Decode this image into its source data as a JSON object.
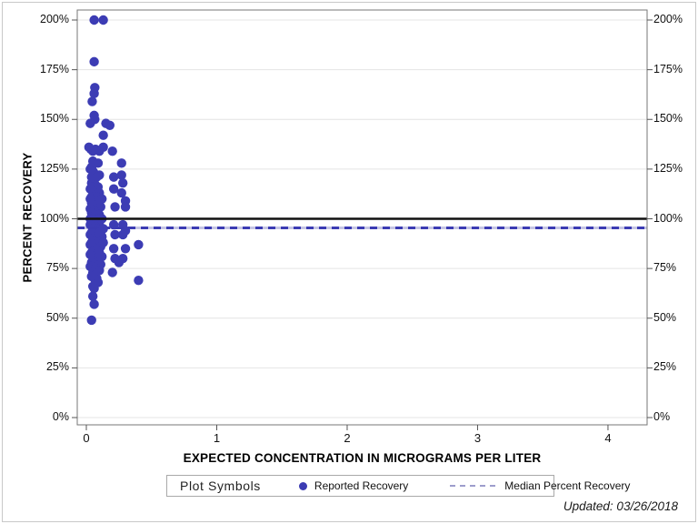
{
  "figure": {
    "footer_updated": "Updated: 03/26/2018"
  },
  "legend": {
    "title": "Plot Symbols",
    "items": [
      {
        "label": "Reported Recovery",
        "symbol": "filled-circle",
        "color": "#3b3bb3"
      },
      {
        "label": "Median Percent Recovery",
        "symbol": "dashed-line",
        "color": "#9d9dcc"
      }
    ]
  },
  "chart_data": {
    "type": "scatter",
    "title": "",
    "xlabel": "EXPECTED CONCENTRATION IN MICROGRAMS PER LITER",
    "ylabel": "PERCENT RECOVERY",
    "x_range": [
      0,
      4.3
    ],
    "x_ticks": [
      0,
      1,
      2,
      3,
      4
    ],
    "y_range_percent": [
      0,
      200
    ],
    "y_ticks_percent": [
      0,
      25,
      50,
      75,
      100,
      125,
      150,
      175,
      200
    ],
    "y_tick_suffix": "%",
    "grid": "horizontal-only",
    "gridline_color": "#e4e4e4",
    "frame_color": "#777777",
    "marker_color": "#3c3cb4",
    "reference_line": {
      "y_percent": 100,
      "color": "#111111",
      "style": "solid"
    },
    "median_line": {
      "y_percent": 95.4,
      "color": "#3b3bb3",
      "gap_color": "#c6c6e4",
      "style": "dashed",
      "name": "Median Percent Recovery"
    },
    "series": [
      {
        "name": "Reported Recovery",
        "points": [
          [
            0.06,
            200
          ],
          [
            0.13,
            200
          ],
          [
            0.06,
            179
          ],
          [
            0.065,
            166
          ],
          [
            0.06,
            163
          ],
          [
            0.045,
            159
          ],
          [
            0.06,
            152
          ],
          [
            0.065,
            150
          ],
          [
            0.03,
            148
          ],
          [
            0.15,
            148
          ],
          [
            0.18,
            147
          ],
          [
            0.13,
            142
          ],
          [
            0.02,
            136
          ],
          [
            0.035,
            135
          ],
          [
            0.05,
            134
          ],
          [
            0.07,
            135
          ],
          [
            0.1,
            134
          ],
          [
            0.13,
            136
          ],
          [
            0.2,
            134
          ],
          [
            0.05,
            129
          ],
          [
            0.09,
            128
          ],
          [
            0.27,
            128
          ],
          [
            0.04,
            126
          ],
          [
            0.03,
            125
          ],
          [
            0.05,
            124
          ],
          [
            0.06,
            123
          ],
          [
            0.1,
            122
          ],
          [
            0.27,
            122
          ],
          [
            0.04,
            121
          ],
          [
            0.08,
            121
          ],
          [
            0.21,
            121
          ],
          [
            0.05,
            120
          ],
          [
            0.04,
            118
          ],
          [
            0.28,
            118
          ],
          [
            0.07,
            117
          ],
          [
            0.05,
            116
          ],
          [
            0.09,
            116
          ],
          [
            0.03,
            115
          ],
          [
            0.21,
            115
          ],
          [
            0.05,
            114
          ],
          [
            0.06,
            113
          ],
          [
            0.1,
            113
          ],
          [
            0.27,
            113
          ],
          [
            0.07,
            112
          ],
          [
            0.04,
            111
          ],
          [
            0.08,
            111
          ],
          [
            0.06,
            110
          ],
          [
            0.03,
            110
          ],
          [
            0.12,
            110
          ],
          [
            0.3,
            109
          ],
          [
            0.04,
            108
          ],
          [
            0.06,
            107
          ],
          [
            0.08,
            107
          ],
          [
            0.05,
            106
          ],
          [
            0.11,
            106
          ],
          [
            0.22,
            106
          ],
          [
            0.3,
            106
          ],
          [
            0.07,
            105
          ],
          [
            0.03,
            105
          ],
          [
            0.06,
            104
          ],
          [
            0.04,
            103
          ],
          [
            0.06,
            102
          ],
          [
            0.1,
            102
          ],
          [
            0.05,
            101
          ],
          [
            0.07,
            101
          ],
          [
            0.03,
            100
          ],
          [
            0.08,
            100
          ],
          [
            0.12,
            100
          ],
          [
            0.05,
            100
          ],
          [
            0.06,
            99
          ],
          [
            0.04,
            98
          ],
          [
            0.06,
            97
          ],
          [
            0.03,
            97
          ],
          [
            0.1,
            97
          ],
          [
            0.21,
            97
          ],
          [
            0.28,
            97
          ],
          [
            0.05,
            96
          ],
          [
            0.07,
            96
          ],
          [
            0.08,
            95
          ],
          [
            0.13,
            95
          ],
          [
            0.05,
            95
          ],
          [
            0.3,
            94
          ],
          [
            0.06,
            94
          ],
          [
            0.04,
            93
          ],
          [
            0.1,
            93
          ],
          [
            0.06,
            92
          ],
          [
            0.03,
            92
          ],
          [
            0.22,
            92
          ],
          [
            0.28,
            92
          ],
          [
            0.05,
            91
          ],
          [
            0.08,
            91
          ],
          [
            0.12,
            91
          ],
          [
            0.07,
            90
          ],
          [
            0.05,
            90
          ],
          [
            0.05,
            89
          ],
          [
            0.04,
            88
          ],
          [
            0.09,
            88
          ],
          [
            0.13,
            88
          ],
          [
            0.4,
            87
          ],
          [
            0.06,
            87
          ],
          [
            0.03,
            87
          ],
          [
            0.05,
            86
          ],
          [
            0.11,
            86
          ],
          [
            0.07,
            85
          ],
          [
            0.21,
            85
          ],
          [
            0.3,
            85
          ],
          [
            0.06,
            84
          ],
          [
            0.04,
            83
          ],
          [
            0.1,
            83
          ],
          [
            0.06,
            82
          ],
          [
            0.03,
            82
          ],
          [
            0.05,
            81
          ],
          [
            0.12,
            81
          ],
          [
            0.08,
            80
          ],
          [
            0.22,
            80
          ],
          [
            0.28,
            80
          ],
          [
            0.05,
            79
          ],
          [
            0.04,
            78
          ],
          [
            0.09,
            78
          ],
          [
            0.25,
            78
          ],
          [
            0.06,
            77
          ],
          [
            0.11,
            77
          ],
          [
            0.03,
            76
          ],
          [
            0.05,
            76
          ],
          [
            0.07,
            75
          ],
          [
            0.1,
            74
          ],
          [
            0.05,
            73
          ],
          [
            0.2,
            73
          ],
          [
            0.07,
            72
          ],
          [
            0.04,
            71
          ],
          [
            0.08,
            70
          ],
          [
            0.06,
            70
          ],
          [
            0.4,
            69
          ],
          [
            0.09,
            68
          ],
          [
            0.05,
            66
          ],
          [
            0.06,
            65
          ],
          [
            0.05,
            61
          ],
          [
            0.06,
            57
          ],
          [
            0.04,
            49
          ]
        ]
      }
    ],
    "legend_position": "bottom"
  }
}
